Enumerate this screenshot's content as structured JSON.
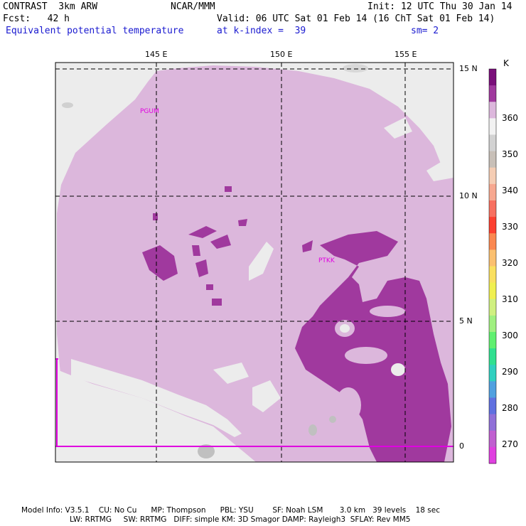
{
  "header": {
    "model": "CONTRAST  3km ARW",
    "org": "NCAR/MMM",
    "init": "Init: 12 UTC Thu 30 Jan 14",
    "fcst": "Fcst:   42 h",
    "valid": "Valid: 06 UTC Sat 01 Feb 14 (16 ChT Sat 01 Feb 14)",
    "field": "Equivalent potential temperature",
    "level": "at k-index =  39",
    "smooth": "sm= 2"
  },
  "axes": {
    "lon_labels": [
      "145 E",
      "150 E",
      "155 E"
    ],
    "lat_labels": [
      "15 N",
      "10 N",
      "5 N",
      "0"
    ]
  },
  "stations": [
    "PGUM",
    "PTKK"
  ],
  "colorbar": {
    "unit": "K",
    "levels": [
      "270",
      "280",
      "290",
      "300",
      "310",
      "320",
      "330",
      "340",
      "350",
      "360"
    ],
    "colors": [
      "#7a0f7a",
      "#a0399e",
      "#dcb7dc",
      "#f2f2f2",
      "#d2d2d2",
      "#c8c0b8",
      "#f5cdb4",
      "#f7a890",
      "#f87060",
      "#fc4030",
      "#fb8850",
      "#fbc070",
      "#fae060",
      "#f0f050",
      "#d0f080",
      "#a0f080",
      "#60f070",
      "#30e090",
      "#30d0c0",
      "#50a0e0",
      "#6070e0",
      "#9070d8",
      "#c060d0",
      "#e040e0"
    ]
  },
  "map_colors": {
    "land_gray": "#ececec",
    "light_purple": "#dcb7dc",
    "dark_purple": "#a0399e",
    "mid_gray": "#d0d0d0",
    "dark_gray": "#b0b0b0"
  },
  "footer": {
    "line1": "Model Info: V3.5.1    CU: No Cu      MP: Thompson      PBL: YSU        SF: Noah LSM       3.0 km   39 levels    18 sec",
    "line2": "LW: RRTMG     SW: RRTMG   DIFF: simple KM: 3D Smagor DAMP: Rayleigh3  SFLAY: Rev MM5"
  }
}
